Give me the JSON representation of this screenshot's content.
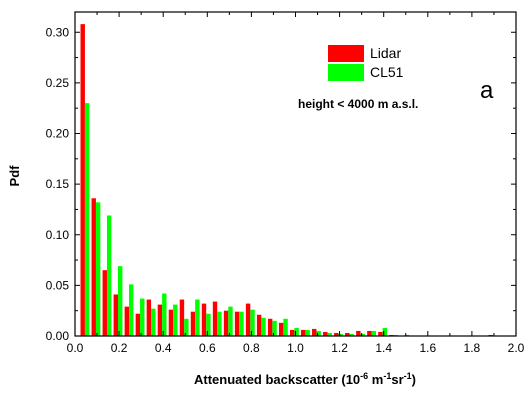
{
  "chart_data": {
    "type": "bar",
    "xlabel_pre": "Attenuated backscatter (10",
    "xlabel_exp1": "-6",
    "xlabel_mid": " m",
    "xlabel_exp2": "-1",
    "xlabel_mid2": "sr",
    "xlabel_exp3": "-1",
    "xlabel_post": ")",
    "ylabel": "Pdf",
    "xlim": [
      0.0,
      2.0
    ],
    "ylim": [
      0.0,
      0.32
    ],
    "x_ticks": [
      "0.0",
      "0.2",
      "0.4",
      "0.6",
      "0.8",
      "1.0",
      "1.2",
      "1.4",
      "1.6",
      "1.8",
      "2.0"
    ],
    "y_ticks": [
      "0.00",
      "0.05",
      "0.10",
      "0.15",
      "0.20",
      "0.25",
      "0.30"
    ],
    "bin_width": 0.05,
    "legend_position": "top-right",
    "annotation": "height < 4000 m a.s.l.",
    "panel_letter": "a",
    "x": [
      0.05,
      0.1,
      0.15,
      0.2,
      0.25,
      0.3,
      0.35,
      0.4,
      0.45,
      0.5,
      0.55,
      0.6,
      0.65,
      0.7,
      0.75,
      0.8,
      0.85,
      0.9,
      0.95,
      1.0,
      1.05,
      1.1,
      1.15,
      1.2,
      1.25,
      1.3,
      1.35,
      1.4,
      1.45,
      1.5,
      1.55,
      1.6,
      1.65,
      1.7,
      1.75,
      1.8,
      1.85,
      1.9
    ],
    "series": [
      {
        "name": "Lidar",
        "color": "#ff0000",
        "values": [
          0.308,
          0.136,
          0.065,
          0.041,
          0.029,
          0.022,
          0.036,
          0.031,
          0.026,
          0.036,
          0.024,
          0.032,
          0.034,
          0.025,
          0.024,
          0.032,
          0.021,
          0.017,
          0.013,
          0.006,
          0.006,
          0.007,
          0.004,
          0.003,
          0.003,
          0.005,
          0.005,
          0.004,
          0.001,
          0.0,
          0.0,
          0.0,
          0.0,
          0.0,
          0.0,
          0.0,
          0.0,
          0.001
        ]
      },
      {
        "name": "CL51",
        "color": "#00ff00",
        "values": [
          0.23,
          0.132,
          0.119,
          0.069,
          0.051,
          0.037,
          0.027,
          0.042,
          0.031,
          0.017,
          0.036,
          0.022,
          0.024,
          0.029,
          0.024,
          0.026,
          0.018,
          0.015,
          0.017,
          0.008,
          0.006,
          0.005,
          0.003,
          0.002,
          0.002,
          0.002,
          0.005,
          0.008,
          0.001,
          0.001,
          0.0,
          0.0,
          0.0,
          0.0,
          0.0,
          0.0,
          0.0,
          0.0
        ]
      }
    ]
  }
}
